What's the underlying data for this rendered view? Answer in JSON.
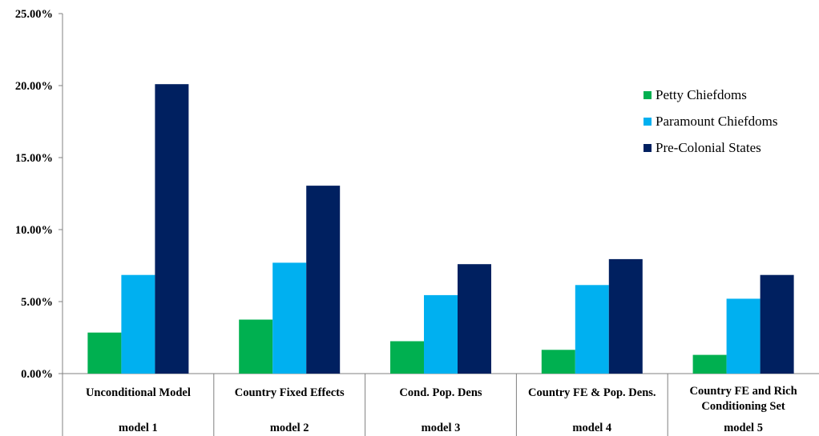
{
  "chart_data": {
    "type": "bar",
    "categories": [
      {
        "line1": "Unconditional Model",
        "line2": "",
        "group": "model 1"
      },
      {
        "line1": "Country Fixed Effects",
        "line2": "",
        "group": "model 2"
      },
      {
        "line1": "Cond. Pop. Dens",
        "line2": "",
        "group": "model 3"
      },
      {
        "line1": "Country FE & Pop. Dens.",
        "line2": "",
        "group": "model 4"
      },
      {
        "line1": "Country FE and Rich",
        "line2": "Conditioning Set",
        "group": "model 5"
      }
    ],
    "series": [
      {
        "name": "Petty Chiefdoms",
        "color": "#00b050",
        "values": [
          2.85,
          3.75,
          2.25,
          1.65,
          1.3
        ]
      },
      {
        "name": "Paramount Chiefdoms",
        "color": "#00b0f0",
        "values": [
          6.85,
          7.7,
          5.45,
          6.15,
          5.2
        ]
      },
      {
        "name": "Pre-Colonial States",
        "color": "#002060",
        "values": [
          20.1,
          13.05,
          7.6,
          7.95,
          6.85
        ]
      }
    ],
    "ylim": [
      0,
      25
    ],
    "yticks": [
      0,
      5,
      10,
      15,
      20,
      25
    ],
    "ytick_labels": [
      "0.00%",
      "5.00%",
      "10.00%",
      "15.00%",
      "20.00%",
      "25.00%"
    ],
    "legend_position": "top-right",
    "grid": false
  }
}
